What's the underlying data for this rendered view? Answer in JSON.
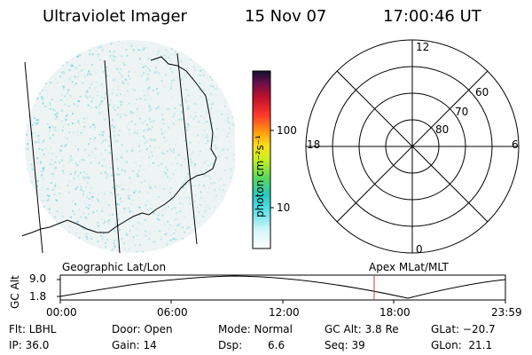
{
  "header": {
    "title": "Ultraviolet Imager",
    "date": "15 Nov 07",
    "time": "17:00:46 UT"
  },
  "colorbar": {
    "unit_label": "photon cm⁻²s⁻¹",
    "ticks": [
      "100",
      "10"
    ]
  },
  "polar_plot": {
    "mlt_labels": [
      "12",
      "18",
      "6",
      "0"
    ],
    "lat_labels": [
      "60",
      "70",
      "80"
    ]
  },
  "orbit": {
    "left_label": "Geographic Lat/Lon",
    "right_label": "Apex MLat/MLT",
    "y_axis_label": "GC Alt",
    "y_ticks": [
      "9.0",
      "1.8"
    ],
    "time_ticks": [
      "00:00",
      "06:00",
      "12:00",
      "18:00",
      "23:59"
    ],
    "marker_color": "#c04040"
  },
  "footer": {
    "flt": "Flt: LBHL",
    "ip": "IP: 36.0",
    "door": "Door: Open",
    "gain": "Gain: 14",
    "mode": "Mode: Normal",
    "dsp_label": "Dsp:",
    "dsp_value": "6.6",
    "gc_alt": "GC Alt: 3.8 Re",
    "seq": "Seq: 39",
    "glat": "GLat: −20.7",
    "glon": "GLon:  21.1"
  },
  "colors": {
    "image_speckle": "#7fd6df",
    "colorbar_stops": [
      "#ffffff",
      "#7de8ec",
      "#2fd4c0",
      "#7fe06a",
      "#d8f028",
      "#ffd820",
      "#ff9a10",
      "#ff3a2a",
      "#c0102a",
      "#70103a",
      "#20103a"
    ]
  }
}
